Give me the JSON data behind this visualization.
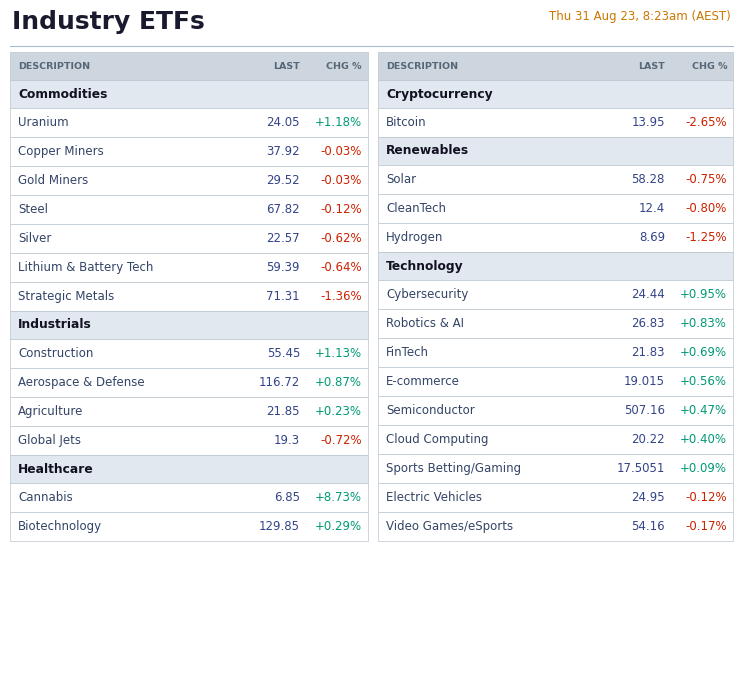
{
  "title": "Industry ETFs",
  "subtitle": "Thu 31 Aug 23, 8:23am (AEST)",
  "title_color": "#1a1a2e",
  "subtitle_color": "#cc7700",
  "header_bg": "#cdd5de",
  "header_text_color": "#556677",
  "category_bg": "#e2e8ef",
  "row_bg": "#ffffff",
  "category_text_color": "#111122",
  "desc_text_color": "#334466",
  "last_text_color": "#334488",
  "pos_chg_color": "#009977",
  "neg_chg_color": "#cc2200",
  "border_color": "#bbc5cf",
  "left_col": {
    "sections": [
      {
        "category": "Commodities",
        "rows": [
          {
            "desc": "Uranium",
            "last": "24.05",
            "chg": "+1.18%",
            "chg_pos": true
          },
          {
            "desc": "Copper Miners",
            "last": "37.92",
            "chg": "-0.03%",
            "chg_pos": false
          },
          {
            "desc": "Gold Miners",
            "last": "29.52",
            "chg": "-0.03%",
            "chg_pos": false
          },
          {
            "desc": "Steel",
            "last": "67.82",
            "chg": "-0.12%",
            "chg_pos": false
          },
          {
            "desc": "Silver",
            "last": "22.57",
            "chg": "-0.62%",
            "chg_pos": false
          },
          {
            "desc": "Lithium & Battery Tech",
            "last": "59.39",
            "chg": "-0.64%",
            "chg_pos": false
          },
          {
            "desc": "Strategic Metals",
            "last": "71.31",
            "chg": "-1.36%",
            "chg_pos": false
          }
        ]
      },
      {
        "category": "Industrials",
        "rows": [
          {
            "desc": "Construction",
            "last": "55.45",
            "chg": "+1.13%",
            "chg_pos": true
          },
          {
            "desc": "Aerospace & Defense",
            "last": "116.72",
            "chg": "+0.87%",
            "chg_pos": true
          },
          {
            "desc": "Agriculture",
            "last": "21.85",
            "chg": "+0.23%",
            "chg_pos": true
          },
          {
            "desc": "Global Jets",
            "last": "19.3",
            "chg": "-0.72%",
            "chg_pos": false
          }
        ]
      },
      {
        "category": "Healthcare",
        "rows": [
          {
            "desc": "Cannabis",
            "last": "6.85",
            "chg": "+8.73%",
            "chg_pos": true
          },
          {
            "desc": "Biotechnology",
            "last": "129.85",
            "chg": "+0.29%",
            "chg_pos": true
          }
        ]
      }
    ]
  },
  "right_col": {
    "sections": [
      {
        "category": "Cryptocurrency",
        "rows": [
          {
            "desc": "Bitcoin",
            "last": "13.95",
            "chg": "-2.65%",
            "chg_pos": false
          }
        ]
      },
      {
        "category": "Renewables",
        "rows": [
          {
            "desc": "Solar",
            "last": "58.28",
            "chg": "-0.75%",
            "chg_pos": false
          },
          {
            "desc": "CleanTech",
            "last": "12.4",
            "chg": "-0.80%",
            "chg_pos": false
          },
          {
            "desc": "Hydrogen",
            "last": "8.69",
            "chg": "-1.25%",
            "chg_pos": false
          }
        ]
      },
      {
        "category": "Technology",
        "rows": [
          {
            "desc": "Cybersecurity",
            "last": "24.44",
            "chg": "+0.95%",
            "chg_pos": true
          },
          {
            "desc": "Robotics & AI",
            "last": "26.83",
            "chg": "+0.83%",
            "chg_pos": true
          },
          {
            "desc": "FinTech",
            "last": "21.83",
            "chg": "+0.69%",
            "chg_pos": true
          },
          {
            "desc": "E-commerce",
            "last": "19.015",
            "chg": "+0.56%",
            "chg_pos": true
          },
          {
            "desc": "Semiconductor",
            "last": "507.16",
            "chg": "+0.47%",
            "chg_pos": true
          },
          {
            "desc": "Cloud Computing",
            "last": "20.22",
            "chg": "+0.40%",
            "chg_pos": true
          },
          {
            "desc": "Sports Betting/Gaming",
            "last": "17.5051",
            "chg": "+0.09%",
            "chg_pos": true
          },
          {
            "desc": "Electric Vehicles",
            "last": "24.95",
            "chg": "-0.12%",
            "chg_pos": false
          },
          {
            "desc": "Video Games/eSports",
            "last": "54.16",
            "chg": "-0.17%",
            "chg_pos": false
          }
        ]
      }
    ]
  },
  "fig_width": 7.43,
  "fig_height": 6.74,
  "dpi": 100
}
